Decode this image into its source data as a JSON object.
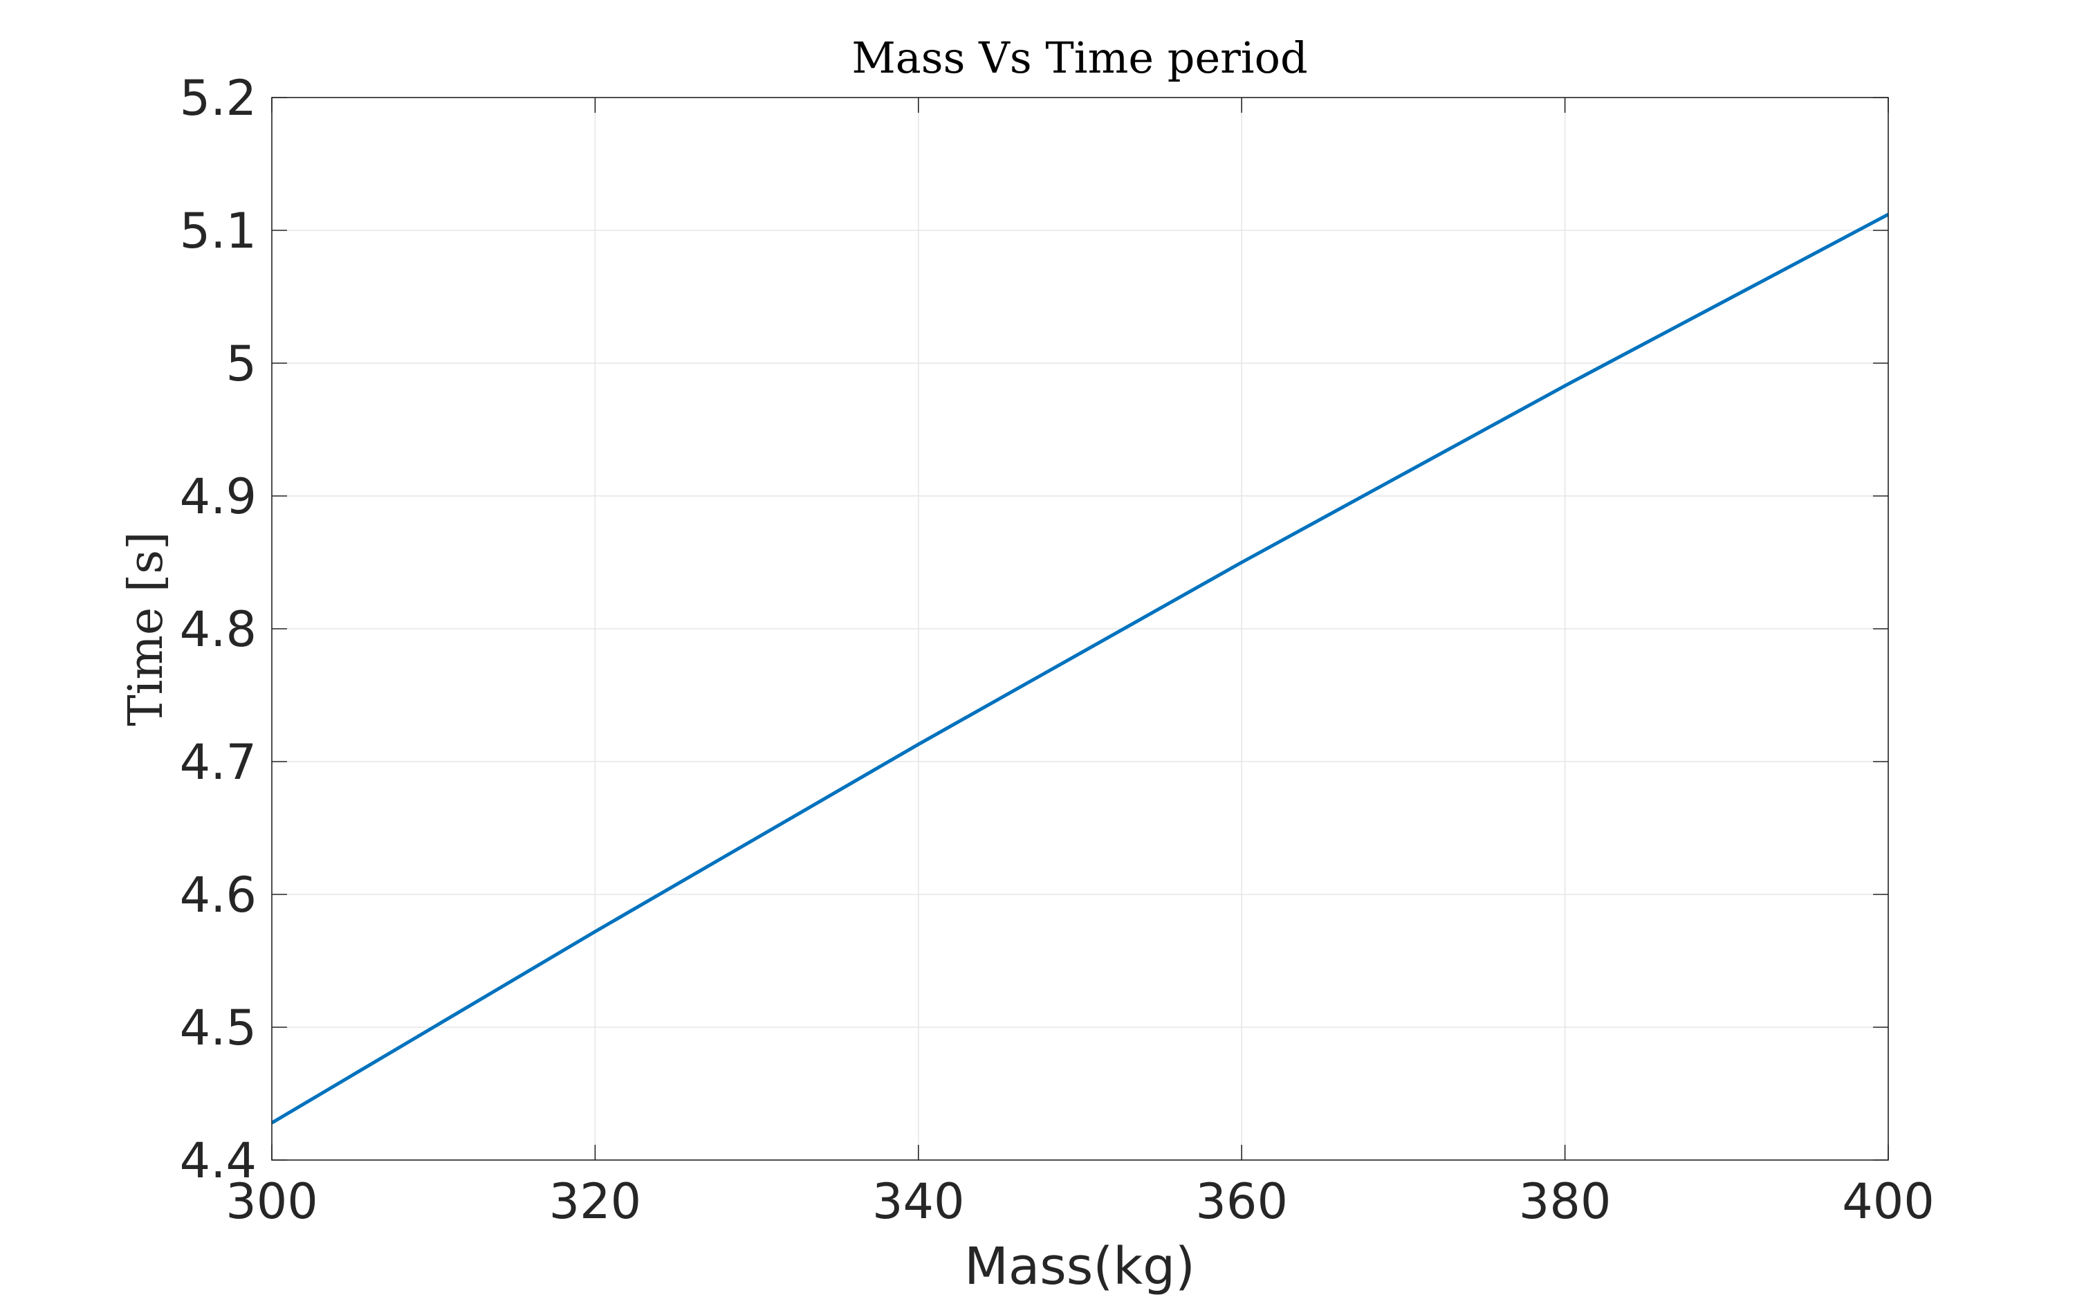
{
  "chart_data": {
    "type": "line",
    "title": "Mass Vs Time period",
    "xlabel": "Mass(kg)",
    "ylabel": "Time [s]",
    "xlim": [
      300,
      400
    ],
    "ylim": [
      4.4,
      5.2
    ],
    "xticks": [
      300,
      320,
      340,
      360,
      380,
      400
    ],
    "yticks": [
      4.4,
      4.5,
      4.6,
      4.7,
      4.8,
      4.9,
      5,
      5.1,
      5.2
    ],
    "xtick_labels": [
      "300",
      "320",
      "340",
      "360",
      "380",
      "400"
    ],
    "ytick_labels": [
      "4.4",
      "4.5",
      "4.6",
      "4.7",
      "4.8",
      "4.9",
      "5",
      "5.1",
      "5.2"
    ],
    "grid": true,
    "series": [
      {
        "color": "#0072BD",
        "x": [
          300,
          320,
          340,
          360,
          380,
          400
        ],
        "y": [
          4.428,
          4.572,
          4.713,
          4.85,
          4.983,
          5.112
        ]
      }
    ]
  }
}
